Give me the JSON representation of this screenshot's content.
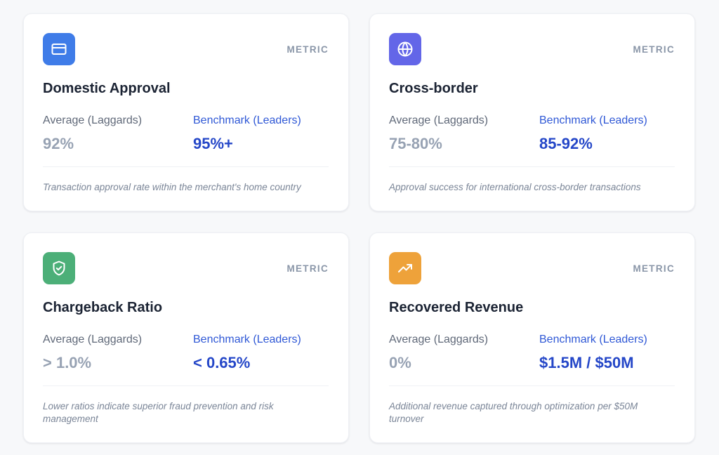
{
  "cards": [
    {
      "icon": "credit-card-icon",
      "icon_color": "#3f7ce8",
      "tag": "METRIC",
      "title": "Domestic Approval",
      "avg_label": "Average (Laggards)",
      "avg_value": "92%",
      "bench_label": "Benchmark (Leaders)",
      "bench_value": "95%+",
      "description": "Transaction approval rate within the merchant's home country"
    },
    {
      "icon": "globe-icon",
      "icon_color": "#6366e8",
      "tag": "METRIC",
      "title": "Cross-border",
      "avg_label": "Average (Laggards)",
      "avg_value": "75-80%",
      "bench_label": "Benchmark (Leaders)",
      "bench_value": "85-92%",
      "description": "Approval success for international cross-border transactions"
    },
    {
      "icon": "shield-check-icon",
      "icon_color": "#4caf78",
      "tag": "METRIC",
      "title": "Chargeback Ratio",
      "avg_label": "Average (Laggards)",
      "avg_value": "> 1.0%",
      "bench_label": "Benchmark (Leaders)",
      "bench_value": "< 0.65%",
      "description": "Lower ratios indicate superior fraud prevention and risk management"
    },
    {
      "icon": "trending-up-icon",
      "icon_color": "#eea23a",
      "tag": "METRIC",
      "title": "Recovered Revenue",
      "avg_label": "Average (Laggards)",
      "avg_value": "0%",
      "bench_label": "Benchmark (Leaders)",
      "bench_value": "$1.5M / $50M",
      "description": "Additional revenue captured through optimization per $50M turnover"
    }
  ]
}
